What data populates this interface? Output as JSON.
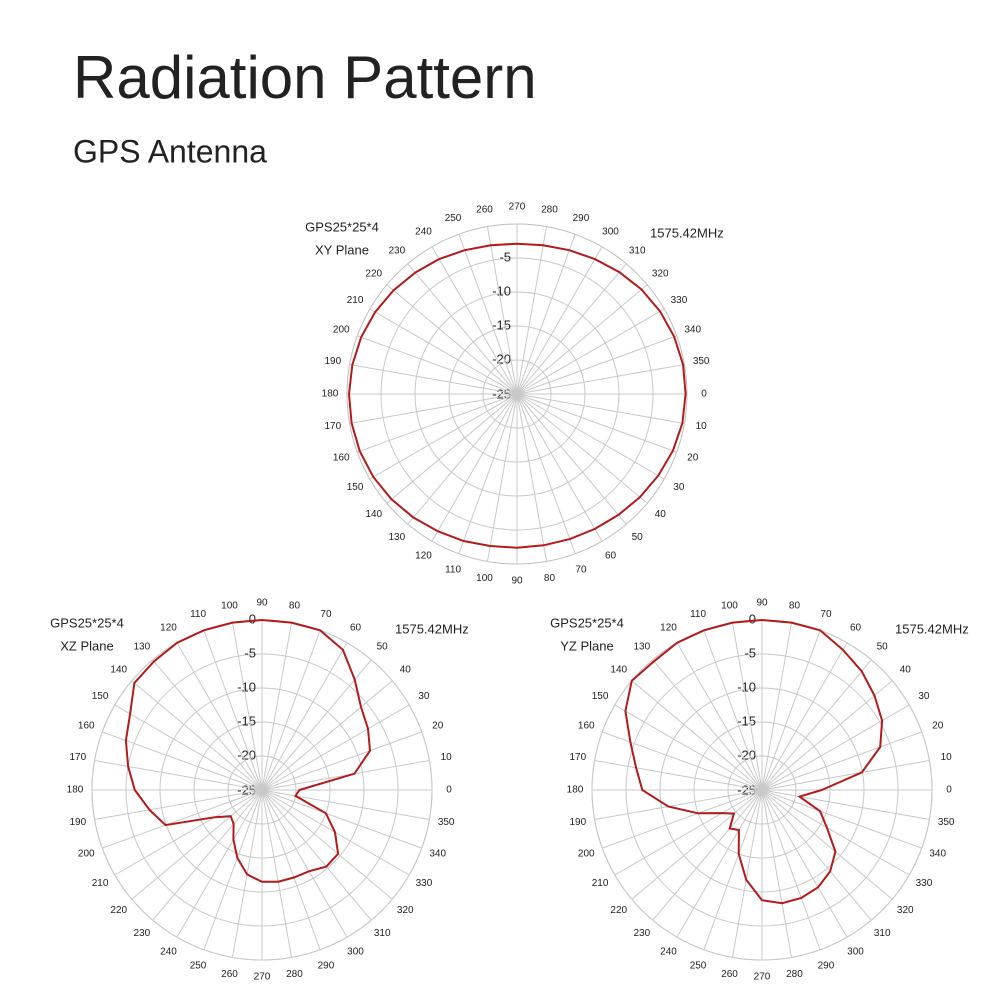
{
  "title": "Radiation Pattern",
  "subtitle": "GPS Antenna",
  "chart_data": [
    {
      "type": "polar",
      "title": "GPS25*25*4",
      "subtitle": "XY Plane",
      "annotation": "1575.42MHz",
      "direction": "clockwise",
      "color": "#b31b1b",
      "rlim": [
        -25,
        0
      ],
      "rticks": [
        -25,
        -20,
        -15,
        -10,
        -5
      ],
      "theta": [
        0,
        10,
        20,
        30,
        40,
        50,
        60,
        70,
        80,
        90,
        100,
        110,
        120,
        130,
        140,
        150,
        160,
        170,
        180,
        190,
        200,
        210,
        220,
        230,
        240,
        250,
        260,
        270,
        280,
        290,
        300,
        310,
        320,
        330,
        340,
        350
      ],
      "values": [
        -0.2,
        -0.3,
        -0.6,
        -1.0,
        -1.4,
        -1.8,
        -2.1,
        -2.3,
        -2.4,
        -2.4,
        -2.3,
        -2.0,
        -1.7,
        -1.3,
        -0.9,
        -0.6,
        -0.4,
        -0.3,
        -0.3,
        -0.4,
        -0.6,
        -0.9,
        -1.3,
        -1.7,
        -2.1,
        -2.5,
        -2.8,
        -2.9,
        -2.8,
        -2.5,
        -2.1,
        -1.6,
        -1.1,
        -0.7,
        -0.4,
        -0.2
      ]
    },
    {
      "type": "polar",
      "title": "GPS25*25*4",
      "subtitle": "XZ Plane",
      "annotation": "1575.42MHz",
      "direction": "counterclockwise",
      "color": "#b31b1b",
      "rlim": [
        -25,
        0
      ],
      "rticks": [
        -25,
        -20,
        -15,
        -10,
        -5,
        0
      ],
      "theta": [
        0,
        10,
        20,
        30,
        40,
        50,
        60,
        70,
        80,
        90,
        100,
        110,
        120,
        130,
        140,
        150,
        160,
        170,
        180,
        190,
        200,
        210,
        220,
        230,
        240,
        250,
        260,
        270,
        280,
        290,
        300,
        310,
        320,
        330,
        340,
        350
      ],
      "values": [
        -19.5,
        -11.2,
        -8.1,
        -7.0,
        -6.0,
        -3.8,
        -1.2,
        0,
        0,
        0,
        0,
        0,
        0,
        -0.3,
        -0.5,
        -2.6,
        -3.7,
        -5.0,
        -6.3,
        -8.2,
        -9.9,
        -17.0,
        -19.0,
        -18.5,
        -16.6,
        -14.4,
        -12.4,
        -11.5,
        -11.3,
        -11.3,
        -11.2,
        -10.3,
        -10.4,
        -12.6,
        -15.0,
        -20.0
      ]
    },
    {
      "type": "polar",
      "title": "GPS25*25*4",
      "subtitle": "YZ Plane",
      "annotation": "1575.42MHz",
      "direction": "counterclockwise",
      "color": "#b31b1b",
      "rlim": [
        -25,
        0
      ],
      "rticks": [
        -25,
        -20,
        -15,
        -10,
        -5,
        0
      ],
      "theta": [
        0,
        10,
        20,
        30,
        40,
        50,
        60,
        70,
        80,
        90,
        100,
        110,
        120,
        130,
        140,
        150,
        160,
        170,
        180,
        190,
        200,
        210,
        220,
        230,
        240,
        250,
        260,
        270,
        280,
        290,
        300,
        310,
        320,
        330,
        340,
        350
      ],
      "values": [
        -16.2,
        -10.1,
        -6.5,
        -4.6,
        -3.4,
        -2.2,
        -1.2,
        0,
        0,
        0,
        0,
        0,
        0,
        -0.3,
        0,
        -1.8,
        -4.4,
        -6.2,
        -7.4,
        -11.0,
        -15.0,
        -18.2,
        -19.6,
        -17.6,
        -18.2,
        -15.0,
        -11.6,
        -8.8,
        -8.1,
        -8.1,
        -8.5,
        -9.4,
        -10.9,
        -14.0,
        -15.9,
        -19.4
      ]
    }
  ]
}
